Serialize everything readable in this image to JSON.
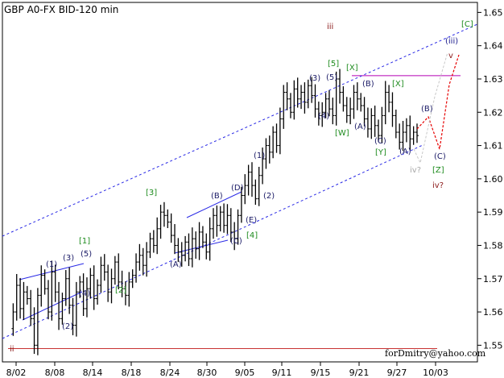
{
  "chart_data": {
    "type": "candlestick",
    "title": "GBP A0-FX BID-120 min",
    "watermark": "forDmitry@yahoo.com",
    "x_tick_labels": [
      "8/02",
      "8/08",
      "8/14",
      "8/18",
      "8/24",
      "8/30",
      "9/05",
      "9/11",
      "9/15",
      "9/21",
      "9/27",
      "10/03"
    ],
    "y_tick_labels": [
      "1.55",
      "1.56",
      "1.57",
      "1.58",
      "1.59",
      "1.60",
      "1.61",
      "1.62",
      "1.63",
      "1.64",
      "1.65"
    ],
    "ylim": [
      1.545,
      1.653
    ],
    "grid": false,
    "price_series": [
      1.555,
      1.56,
      1.568,
      1.561,
      1.566,
      1.564,
      1.558,
      1.55,
      1.565,
      1.571,
      1.567,
      1.56,
      1.572,
      1.566,
      1.558,
      1.564,
      1.57,
      1.562,
      1.556,
      1.566,
      1.569,
      1.561,
      1.567,
      1.571,
      1.564,
      1.568,
      1.574,
      1.572,
      1.566,
      1.57,
      1.575,
      1.569,
      1.567,
      1.565,
      1.569,
      1.571,
      1.575,
      1.577,
      1.574,
      1.578,
      1.582,
      1.58,
      1.585,
      1.59,
      1.589,
      1.587,
      1.583,
      1.58,
      1.578,
      1.577,
      1.581,
      1.576,
      1.582,
      1.579,
      1.584,
      1.581,
      1.578,
      1.585,
      1.589,
      1.586,
      1.59,
      1.586,
      1.589,
      1.584,
      1.582,
      1.589,
      1.595,
      1.598,
      1.602,
      1.598,
      1.594,
      1.601,
      1.606,
      1.61,
      1.608,
      1.614,
      1.61,
      1.618,
      1.626,
      1.624,
      1.62,
      1.627,
      1.624,
      1.626,
      1.623,
      1.628,
      1.625,
      1.621,
      1.619,
      1.62,
      1.624,
      1.621,
      1.619,
      1.63,
      1.626,
      1.622,
      1.619,
      1.621,
      1.626,
      1.624,
      1.622,
      1.618,
      1.615,
      1.619,
      1.616,
      1.613,
      1.619,
      1.626,
      1.623,
      1.619,
      1.614,
      1.611,
      1.614,
      1.616,
      1.612,
      1.614,
      1.613
    ],
    "reference_levels": [
      {
        "name": "low-line",
        "value": 1.549,
        "color": "#c83232"
      },
      {
        "name": "high-line",
        "value": 1.631,
        "color": "#b400b4"
      }
    ],
    "wave_labels": [
      {
        "text": "ii",
        "color": "#8b1a1a"
      },
      {
        "text": "iii",
        "color": "#8b1a1a"
      },
      {
        "text": "iv?",
        "color": "#8b1a1a"
      },
      {
        "text": "v",
        "color": "#8b1a1a"
      },
      {
        "text": "iv?",
        "color": "#a8a8a8"
      },
      {
        "text": "(iii)",
        "color": "#1a1a8c"
      },
      {
        "text": "[C]",
        "color": "#1f8c1f"
      },
      {
        "text": "[1]",
        "color": "#1f8c1f"
      },
      {
        "text": "[2]",
        "color": "#1f8c1f"
      },
      {
        "text": "[3]",
        "color": "#1f8c1f"
      },
      {
        "text": "[4]",
        "color": "#1f8c1f"
      },
      {
        "text": "[5]",
        "color": "#1f8c1f"
      },
      {
        "text": "[W]",
        "color": "#1f8c1f"
      },
      {
        "text": "[X]",
        "color": "#1f8c1f"
      },
      {
        "text": "[X]",
        "color": "#1f8c1f"
      },
      {
        "text": "[Y]",
        "color": "#1f8c1f"
      },
      {
        "text": "[Z]",
        "color": "#1f8c1f"
      },
      {
        "text": "(1)",
        "color": "#1a1a66"
      },
      {
        "text": "(2)",
        "color": "#1a1a66"
      },
      {
        "text": "(3)",
        "color": "#1a1a66"
      },
      {
        "text": "(4)",
        "color": "#1a1a66"
      },
      {
        "text": "(5)",
        "color": "#1a1a66"
      },
      {
        "text": "(1)",
        "color": "#1a1a66"
      },
      {
        "text": "(2)",
        "color": "#1a1a66"
      },
      {
        "text": "(3)",
        "color": "#1a1a66"
      },
      {
        "text": "(4)",
        "color": "#1a1a66"
      },
      {
        "text": "(5)",
        "color": "#1a1a66"
      },
      {
        "text": "(A)",
        "color": "#1a1a66"
      },
      {
        "text": "(B)",
        "color": "#1a1a66"
      },
      {
        "text": "(C)",
        "color": "#1a1a66"
      },
      {
        "text": "(D)",
        "color": "#1a1a66"
      },
      {
        "text": "(E)",
        "color": "#1a1a66"
      },
      {
        "text": "(A)",
        "color": "#1a1a66"
      },
      {
        "text": "(B)",
        "color": "#1a1a66"
      },
      {
        "text": "(C)",
        "color": "#1a1a66"
      },
      {
        "text": "(A)",
        "color": "#1a1a66"
      },
      {
        "text": "(B)",
        "color": "#1a1a66"
      },
      {
        "text": "(C)",
        "color": "#1a1a66"
      }
    ],
    "colors": {
      "channel": "#2a2ae6",
      "triangle": "#2a2ae6",
      "forecast": "#e60000",
      "forecast_alt": "#c8c8c8",
      "candles": "#000000"
    }
  }
}
